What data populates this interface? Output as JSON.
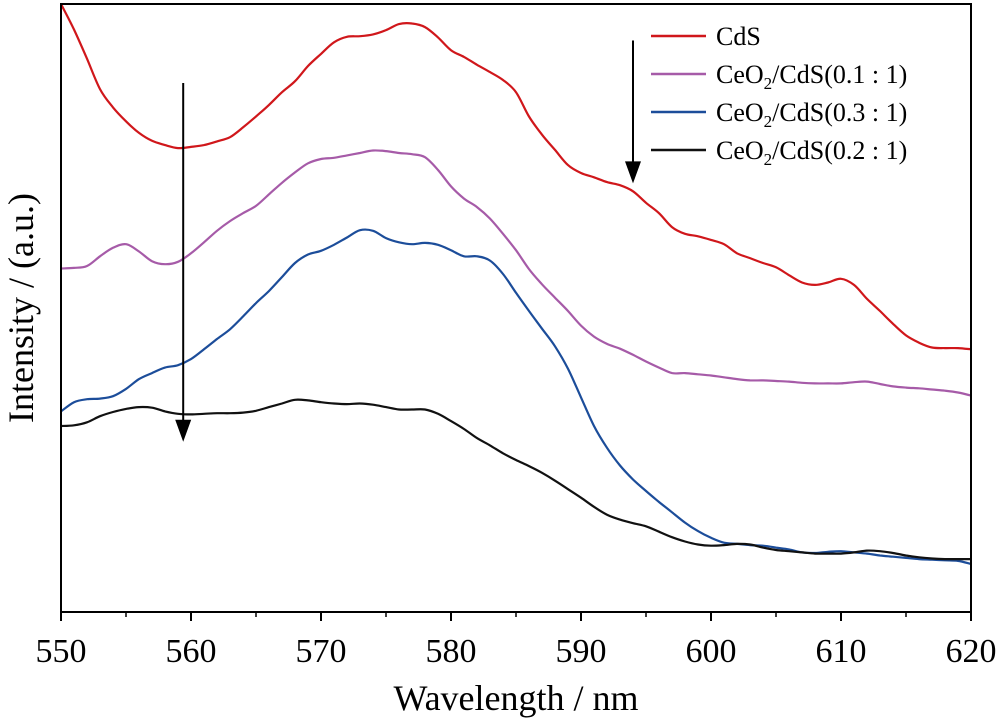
{
  "chart_data": {
    "type": "line",
    "title": "",
    "xlabel": "Wavelength / nm",
    "ylabel": "Intensity / (a.u.)",
    "xlim": [
      550,
      620
    ],
    "ylim": [
      0,
      100
    ],
    "x_ticks": [
      550,
      560,
      570,
      580,
      590,
      600,
      610,
      620
    ],
    "y_ticks_shown": false,
    "grid": false,
    "legend_position": "top-right",
    "series": [
      {
        "name": "CdS",
        "color": "#d0171b",
        "x": [
          550,
          551,
          552,
          553,
          554,
          555,
          556,
          557,
          558,
          559,
          560,
          561,
          562,
          563,
          564,
          565,
          566,
          567,
          568,
          569,
          570,
          571,
          572,
          573,
          574,
          575,
          576,
          577,
          578,
          579,
          580,
          581,
          582,
          583,
          584,
          585,
          586,
          587,
          588,
          589,
          590,
          591,
          592,
          593,
          594,
          595,
          596,
          597,
          598,
          599,
          600,
          601,
          602,
          603,
          604,
          605,
          606,
          607,
          608,
          609,
          610,
          611,
          612,
          613,
          614,
          615,
          616,
          617,
          618,
          619,
          620
        ],
        "values": [
          100,
          95.8,
          91,
          86,
          83,
          80.7,
          78.8,
          77.5,
          76.8,
          76.3,
          76.5,
          76.8,
          77.4,
          78.1,
          79.7,
          81.5,
          83.4,
          85.5,
          87.3,
          89.8,
          91.8,
          93.7,
          94.6,
          94.7,
          95,
          95.7,
          96.7,
          96.8,
          96.2,
          94.5,
          92.4,
          91.3,
          90,
          88.8,
          87.5,
          85.5,
          81.5,
          78.5,
          76,
          73.5,
          72.2,
          71.5,
          70.7,
          70.2,
          69.2,
          67.3,
          65.6,
          63.3,
          62.2,
          61.8,
          61.2,
          60.5,
          59,
          58.2,
          57.4,
          56.7,
          55.4,
          54.2,
          53.8,
          54.2,
          54.8,
          53.8,
          51.5,
          49.5,
          47.4,
          45.5,
          44.3,
          43.5,
          43.4,
          43.4,
          43.2
        ]
      },
      {
        "name": "CeO2/CdS(0.1 : 1)",
        "color": "#a65ba8",
        "x": [
          550,
          551,
          552,
          553,
          554,
          555,
          556,
          557,
          558,
          559,
          560,
          561,
          562,
          563,
          564,
          565,
          566,
          567,
          568,
          569,
          570,
          571,
          572,
          573,
          574,
          575,
          576,
          577,
          578,
          579,
          580,
          581,
          582,
          583,
          584,
          585,
          586,
          587,
          588,
          589,
          590,
          591,
          592,
          593,
          594,
          595,
          596,
          597,
          598,
          599,
          600,
          601,
          602,
          603,
          604,
          605,
          606,
          607,
          608,
          609,
          610,
          611,
          612,
          613,
          614,
          615,
          616,
          617,
          618,
          619,
          620
        ],
        "values": [
          56.5,
          56.6,
          56.9,
          58.5,
          59.9,
          60.5,
          59.3,
          57.7,
          57.2,
          57.6,
          59,
          60.8,
          62.7,
          64.3,
          65.6,
          66.8,
          68.7,
          70.6,
          72.3,
          73.8,
          74.5,
          74.7,
          75.1,
          75.5,
          75.9,
          75.8,
          75.5,
          75.3,
          74.8,
          72.7,
          70,
          68,
          66.6,
          64.7,
          62.2,
          59.5,
          56.4,
          53.9,
          51.7,
          49.5,
          47.1,
          45.3,
          44.1,
          43.3,
          42.3,
          41.2,
          40.2,
          39.3,
          39.3,
          39.1,
          38.9,
          38.6,
          38.3,
          38.1,
          38.1,
          38,
          37.9,
          37.7,
          37.6,
          37.6,
          37.6,
          37.8,
          37.9,
          37.5,
          37.1,
          36.9,
          36.8,
          36.6,
          36.4,
          36.1,
          35.6
        ]
      },
      {
        "name": "CeO2/CdS(0.3 : 1)",
        "color": "#1c4d9a",
        "x": [
          550,
          551,
          552,
          553,
          554,
          555,
          556,
          557,
          558,
          559,
          560,
          561,
          562,
          563,
          564,
          565,
          566,
          567,
          568,
          569,
          570,
          571,
          572,
          573,
          574,
          575,
          576,
          577,
          578,
          579,
          580,
          581,
          582,
          583,
          584,
          585,
          586,
          587,
          588,
          589,
          590,
          591,
          592,
          593,
          594,
          595,
          596,
          597,
          598,
          599,
          600,
          601,
          602,
          603,
          604,
          605,
          606,
          607,
          608,
          609,
          610,
          611,
          612,
          613,
          614,
          615,
          616,
          617,
          618,
          619,
          620
        ],
        "values": [
          33,
          34.5,
          35,
          35.1,
          35.5,
          36.7,
          38.3,
          39.3,
          40.2,
          40.6,
          41.6,
          43.2,
          44.9,
          46.5,
          48.6,
          50.8,
          52.8,
          55.1,
          57.4,
          58.8,
          59.4,
          60.4,
          61.6,
          62.8,
          62.7,
          61.5,
          60.8,
          60.5,
          60.7,
          60.4,
          59.5,
          58.5,
          58.5,
          57.8,
          55.6,
          52.5,
          49.5,
          46.6,
          43.7,
          40,
          35.3,
          30.6,
          27,
          24.1,
          21.8,
          19.9,
          18.1,
          16.4,
          14.7,
          13.3,
          12.2,
          11.4,
          11.2,
          11,
          10.9,
          10.6,
          10.3,
          9.8,
          9.7,
          9.9,
          10,
          9.8,
          9.6,
          9.3,
          9.1,
          8.9,
          8.7,
          8.6,
          8.5,
          8.4,
          7.9
        ]
      },
      {
        "name": "CeO2/CdS(0.2 : 1)",
        "color": "#111111",
        "x": [
          550,
          551,
          552,
          553,
          554,
          555,
          556,
          557,
          558,
          559,
          560,
          561,
          562,
          563,
          564,
          565,
          566,
          567,
          568,
          569,
          570,
          571,
          572,
          573,
          574,
          575,
          576,
          577,
          578,
          579,
          580,
          581,
          582,
          583,
          584,
          585,
          586,
          587,
          588,
          589,
          590,
          591,
          592,
          593,
          594,
          595,
          596,
          597,
          598,
          599,
          600,
          601,
          602,
          603,
          604,
          605,
          606,
          607,
          608,
          609,
          610,
          611,
          612,
          613,
          614,
          615,
          616,
          617,
          618,
          619,
          620
        ],
        "values": [
          30.6,
          30.7,
          31.2,
          32.2,
          32.9,
          33.4,
          33.7,
          33.6,
          33,
          32.6,
          32.5,
          32.6,
          32.7,
          32.7,
          32.8,
          33.1,
          33.7,
          34.3,
          34.9,
          34.8,
          34.5,
          34.3,
          34.2,
          34.3,
          34.1,
          33.7,
          33.3,
          33.3,
          33.3,
          32.6,
          31.4,
          30.1,
          28.6,
          27.4,
          26.1,
          25,
          24,
          22.9,
          21.6,
          20.2,
          18.8,
          17.3,
          16,
          15.2,
          14.6,
          14.1,
          13.2,
          12.3,
          11.6,
          11.1,
          10.9,
          11,
          11.2,
          11.1,
          10.6,
          10.2,
          10,
          9.8,
          9.6,
          9.6,
          9.6,
          9.8,
          10.1,
          10,
          9.7,
          9.3,
          9,
          8.8,
          8.7,
          8.7,
          8.7
        ]
      }
    ],
    "annotations": [
      {
        "type": "arrow",
        "direction": "down",
        "x": 559.4,
        "y_from": 87,
        "y_to": 28
      },
      {
        "type": "arrow",
        "direction": "down",
        "x": 594,
        "y_from": 94,
        "y_to": 70.5
      }
    ]
  },
  "legend": {
    "entries": [
      {
        "prefix": "CdS",
        "sub": "",
        "suffix": ""
      },
      {
        "prefix": "CeO",
        "sub": "2",
        "suffix": "/CdS(0.1 : 1)"
      },
      {
        "prefix": "CeO",
        "sub": "2",
        "suffix": "/CdS(0.3 : 1)"
      },
      {
        "prefix": "CeO",
        "sub": "2",
        "suffix": "/CdS(0.2 : 1)"
      }
    ]
  }
}
